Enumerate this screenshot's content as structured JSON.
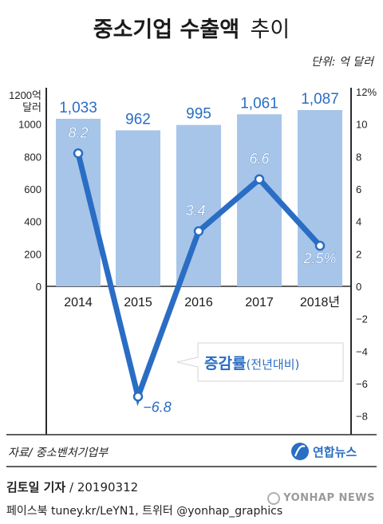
{
  "title_main": "중소기업 수출액",
  "title_sub": "추이",
  "unit": "단위: 억 달러",
  "source": "자료/ 중소벤처기업부",
  "logo_text": "연합뉴스",
  "reporter_name": "김토일 기자",
  "reporter_date": "/ 20190312",
  "social": "페이스북 tuney.kr/LeYN1, 트위터 @yonhap_graphics",
  "agency": "YONHAP NEWS",
  "colors": {
    "bar": "#a7c5e8",
    "line": "#2a6dc4",
    "label_bar": "#2a6dc4",
    "frame": "#2b2b2b"
  },
  "chart_data": {
    "type": "bar+line",
    "categories": [
      "2014",
      "2015",
      "2016",
      "2017",
      "2018년"
    ],
    "bar_values": [
      1033,
      962,
      995,
      1061,
      1087
    ],
    "bar_labels": [
      "1,033",
      "962",
      "995",
      "1,061",
      "1,087"
    ],
    "line_values": [
      8.2,
      -6.8,
      3.4,
      6.6,
      2.5
    ],
    "line_labels": [
      "8.2",
      "−6.8",
      "3.4",
      "6.6",
      "2.5%"
    ],
    "left_ylim": [
      0,
      1200
    ],
    "left_ticks": [
      "0",
      "200",
      "400",
      "600",
      "800",
      "1000"
    ],
    "left_top_label": "1200억",
    "left_top_label2": "달러",
    "right_ylim": [
      -8,
      12
    ],
    "right_ticks": [
      "12%",
      "10",
      "8",
      "6",
      "4",
      "2",
      "0",
      "−2",
      "−4",
      "−6",
      "−8"
    ],
    "line_series_label_bold": "증감률",
    "line_series_label_rest": "(전년대비)"
  }
}
